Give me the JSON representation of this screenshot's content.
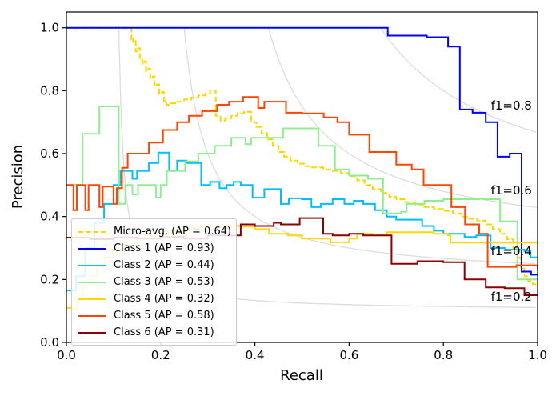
{
  "chart_data": {
    "type": "line",
    "title": "",
    "xlabel": "Recall",
    "ylabel": "Precision",
    "xlim": [
      0,
      1.0
    ],
    "ylim": [
      0,
      1.05
    ],
    "x_ticks": [
      "0.0",
      "0.2",
      "0.4",
      "0.6",
      "0.8",
      "1.0"
    ],
    "y_ticks": [
      "0.0",
      "0.2",
      "0.4",
      "0.6",
      "0.8",
      "1.0"
    ],
    "grid": false,
    "legend_position": "lower-left",
    "iso_f1": {
      "values": [
        0.2,
        0.4,
        0.6,
        0.8
      ],
      "labels": [
        "f1=0.2",
        "f1=0.4",
        "f1=0.6",
        "f1=0.8"
      ],
      "color": "#dcdcdc",
      "label_x": 0.9
    },
    "series": [
      {
        "name": "micro-avg",
        "label": "Micro-avg. (AP = 0.64)",
        "color": "#FFD700",
        "dash": "7 3",
        "points": [
          [
            0,
            1.0
          ],
          [
            0.134,
            1.0
          ],
          [
            0.138,
            0.955
          ],
          [
            0.142,
            0.965
          ],
          [
            0.147,
            0.925
          ],
          [
            0.152,
            0.935
          ],
          [
            0.156,
            0.9
          ],
          [
            0.161,
            0.885
          ],
          [
            0.165,
            0.893
          ],
          [
            0.169,
            0.862
          ],
          [
            0.174,
            0.87
          ],
          [
            0.178,
            0.838
          ],
          [
            0.183,
            0.845
          ],
          [
            0.187,
            0.815
          ],
          [
            0.192,
            0.82
          ],
          [
            0.197,
            0.79
          ],
          [
            0.202,
            0.795
          ],
          [
            0.207,
            0.768
          ],
          [
            0.212,
            0.755
          ],
          [
            0.22,
            0.76
          ],
          [
            0.235,
            0.765
          ],
          [
            0.25,
            0.772
          ],
          [
            0.265,
            0.778
          ],
          [
            0.28,
            0.785
          ],
          [
            0.295,
            0.79
          ],
          [
            0.305,
            0.8
          ],
          [
            0.317,
            0.72
          ],
          [
            0.327,
            0.705
          ],
          [
            0.337,
            0.712
          ],
          [
            0.35,
            0.72
          ],
          [
            0.363,
            0.728
          ],
          [
            0.377,
            0.733
          ],
          [
            0.392,
            0.7
          ],
          [
            0.403,
            0.685
          ],
          [
            0.414,
            0.665
          ],
          [
            0.426,
            0.645
          ],
          [
            0.438,
            0.625
          ],
          [
            0.45,
            0.605
          ],
          [
            0.462,
            0.59
          ],
          [
            0.475,
            0.578
          ],
          [
            0.49,
            0.568
          ],
          [
            0.505,
            0.56
          ],
          [
            0.52,
            0.556
          ],
          [
            0.545,
            0.55
          ],
          [
            0.562,
            0.545
          ],
          [
            0.582,
            0.538
          ],
          [
            0.6,
            0.528
          ],
          [
            0.617,
            0.515
          ],
          [
            0.633,
            0.5
          ],
          [
            0.65,
            0.487
          ],
          [
            0.667,
            0.475
          ],
          [
            0.685,
            0.463
          ],
          [
            0.7,
            0.455
          ],
          [
            0.72,
            0.446
          ],
          [
            0.74,
            0.438
          ],
          [
            0.76,
            0.43
          ],
          [
            0.78,
            0.424
          ],
          [
            0.8,
            0.418
          ],
          [
            0.82,
            0.41
          ],
          [
            0.838,
            0.4
          ],
          [
            0.855,
            0.393
          ],
          [
            0.872,
            0.387
          ],
          [
            0.89,
            0.375
          ],
          [
            0.905,
            0.36
          ],
          [
            0.92,
            0.345
          ],
          [
            0.935,
            0.328
          ],
          [
            0.948,
            0.3
          ],
          [
            0.957,
            0.27
          ],
          [
            0.964,
            0.235
          ],
          [
            0.972,
            0.21
          ],
          [
            0.98,
            0.195
          ],
          [
            0.99,
            0.185
          ],
          [
            1.0,
            0.18
          ]
        ]
      },
      {
        "name": "class-1",
        "label": "Class 1 (AP = 0.93)",
        "color": "#0000FF",
        "dash": null,
        "points": [
          [
            0,
            1.0
          ],
          [
            0.678,
            1.0
          ],
          [
            0.682,
            0.975
          ],
          [
            0.762,
            0.975
          ],
          [
            0.765,
            0.97
          ],
          [
            0.805,
            0.97
          ],
          [
            0.81,
            0.94
          ],
          [
            0.832,
            0.94
          ],
          [
            0.835,
            0.74
          ],
          [
            0.858,
            0.74
          ],
          [
            0.862,
            0.73
          ],
          [
            0.886,
            0.73
          ],
          [
            0.89,
            0.7
          ],
          [
            0.912,
            0.7
          ],
          [
            0.915,
            0.59
          ],
          [
            0.938,
            0.59
          ],
          [
            0.941,
            0.6
          ],
          [
            0.963,
            0.6
          ],
          [
            0.966,
            0.225
          ],
          [
            0.983,
            0.225
          ],
          [
            0.986,
            0.215
          ],
          [
            1.0,
            0.215
          ]
        ]
      },
      {
        "name": "class-2",
        "label": "Class 2 (AP = 0.44)",
        "color": "#00BFFF",
        "dash": null,
        "points": [
          [
            0,
            0.165
          ],
          [
            0.02,
            0.21
          ],
          [
            0.04,
            0.3
          ],
          [
            0.06,
            0.38
          ],
          [
            0.08,
            0.44
          ],
          [
            0.1,
            0.5
          ],
          [
            0.115,
            0.545
          ],
          [
            0.14,
            0.52
          ],
          [
            0.15,
            0.545
          ],
          [
            0.175,
            0.57
          ],
          [
            0.195,
            0.603
          ],
          [
            0.218,
            0.545
          ],
          [
            0.235,
            0.578
          ],
          [
            0.255,
            0.57
          ],
          [
            0.286,
            0.5
          ],
          [
            0.305,
            0.51
          ],
          [
            0.325,
            0.49
          ],
          [
            0.34,
            0.5
          ],
          [
            0.355,
            0.51
          ],
          [
            0.37,
            0.5
          ],
          [
            0.395,
            0.46
          ],
          [
            0.42,
            0.487
          ],
          [
            0.455,
            0.44
          ],
          [
            0.472,
            0.458
          ],
          [
            0.5,
            0.455
          ],
          [
            0.52,
            0.43
          ],
          [
            0.54,
            0.44
          ],
          [
            0.565,
            0.455
          ],
          [
            0.59,
            0.44
          ],
          [
            0.61,
            0.45
          ],
          [
            0.63,
            0.44
          ],
          [
            0.655,
            0.42
          ],
          [
            0.68,
            0.4
          ],
          [
            0.7,
            0.39
          ],
          [
            0.73,
            0.39
          ],
          [
            0.755,
            0.37
          ],
          [
            0.78,
            0.355
          ],
          [
            0.8,
            0.345
          ],
          [
            0.83,
            0.345
          ],
          [
            0.845,
            0.335
          ],
          [
            0.87,
            0.34
          ],
          [
            0.9,
            0.3
          ],
          [
            0.93,
            0.295
          ],
          [
            0.972,
            0.29
          ],
          [
            0.985,
            0.27
          ],
          [
            1.0,
            0.27
          ]
        ]
      },
      {
        "name": "class-3",
        "label": "Class 3 (AP = 0.53)",
        "color": "#90EE90",
        "dash": null,
        "points": [
          [
            0,
            0.5
          ],
          [
            0.034,
            0.663
          ],
          [
            0.07,
            0.75
          ],
          [
            0.108,
            0.75
          ],
          [
            0.111,
            0.44
          ],
          [
            0.125,
            0.5
          ],
          [
            0.14,
            0.47
          ],
          [
            0.152,
            0.5
          ],
          [
            0.175,
            0.5
          ],
          [
            0.19,
            0.46
          ],
          [
            0.2,
            0.5
          ],
          [
            0.213,
            0.545
          ],
          [
            0.24,
            0.545
          ],
          [
            0.252,
            0.575
          ],
          [
            0.28,
            0.6
          ],
          [
            0.315,
            0.625
          ],
          [
            0.35,
            0.65
          ],
          [
            0.38,
            0.63
          ],
          [
            0.392,
            0.65
          ],
          [
            0.425,
            0.65
          ],
          [
            0.46,
            0.68
          ],
          [
            0.53,
            0.68
          ],
          [
            0.535,
            0.625
          ],
          [
            0.565,
            0.625
          ],
          [
            0.57,
            0.55
          ],
          [
            0.6,
            0.53
          ],
          [
            0.64,
            0.52
          ],
          [
            0.672,
            0.41
          ],
          [
            0.71,
            0.415
          ],
          [
            0.722,
            0.44
          ],
          [
            0.76,
            0.45
          ],
          [
            0.8,
            0.455
          ],
          [
            0.875,
            0.457
          ],
          [
            0.882,
            0.455
          ],
          [
            0.92,
            0.385
          ],
          [
            0.954,
            0.385
          ],
          [
            0.957,
            0.2
          ],
          [
            1.0,
            0.195
          ]
        ]
      },
      {
        "name": "class-4",
        "label": "Class 4 (AP = 0.32)",
        "color": "#FFD700",
        "dash": null,
        "points": [
          [
            0,
            0.11
          ],
          [
            0.012,
            0.105
          ],
          [
            0.022,
            0.14
          ],
          [
            0.035,
            0.18
          ],
          [
            0.05,
            0.21
          ],
          [
            0.065,
            0.24
          ],
          [
            0.08,
            0.27
          ],
          [
            0.1,
            0.29
          ],
          [
            0.12,
            0.31
          ],
          [
            0.15,
            0.33
          ],
          [
            0.18,
            0.345
          ],
          [
            0.22,
            0.355
          ],
          [
            0.26,
            0.365
          ],
          [
            0.3,
            0.368
          ],
          [
            0.33,
            0.37
          ],
          [
            0.37,
            0.368
          ],
          [
            0.4,
            0.36
          ],
          [
            0.43,
            0.345
          ],
          [
            0.47,
            0.34
          ],
          [
            0.5,
            0.33
          ],
          [
            0.56,
            0.318
          ],
          [
            0.6,
            0.33
          ],
          [
            0.617,
            0.345
          ],
          [
            0.65,
            0.34
          ],
          [
            0.68,
            0.35
          ],
          [
            0.74,
            0.35
          ],
          [
            0.78,
            0.345
          ],
          [
            0.81,
            0.34
          ],
          [
            0.815,
            0.317
          ],
          [
            1.0,
            0.317
          ]
        ]
      },
      {
        "name": "class-5",
        "label": "Class 5 (AP = 0.58)",
        "color": "#FF4500",
        "dash": null,
        "points": [
          [
            0,
            0.5
          ],
          [
            0.015,
            0.42
          ],
          [
            0.022,
            0.5
          ],
          [
            0.04,
            0.42
          ],
          [
            0.047,
            0.5
          ],
          [
            0.07,
            0.43
          ],
          [
            0.077,
            0.495
          ],
          [
            0.1,
            0.44
          ],
          [
            0.107,
            0.49
          ],
          [
            0.118,
            0.555
          ],
          [
            0.13,
            0.6
          ],
          [
            0.155,
            0.6
          ],
          [
            0.175,
            0.635
          ],
          [
            0.205,
            0.675
          ],
          [
            0.235,
            0.7
          ],
          [
            0.26,
            0.72
          ],
          [
            0.288,
            0.735
          ],
          [
            0.32,
            0.755
          ],
          [
            0.345,
            0.765
          ],
          [
            0.375,
            0.78
          ],
          [
            0.407,
            0.745
          ],
          [
            0.42,
            0.765
          ],
          [
            0.466,
            0.73
          ],
          [
            0.5,
            0.728
          ],
          [
            0.546,
            0.715
          ],
          [
            0.575,
            0.7
          ],
          [
            0.6,
            0.66
          ],
          [
            0.643,
            0.605
          ],
          [
            0.7,
            0.565
          ],
          [
            0.733,
            0.55
          ],
          [
            0.758,
            0.5
          ],
          [
            0.817,
            0.43
          ],
          [
            0.846,
            0.375
          ],
          [
            0.876,
            0.345
          ],
          [
            0.894,
            0.24
          ],
          [
            0.955,
            0.245
          ],
          [
            1.0,
            0.235
          ]
        ]
      },
      {
        "name": "class-6",
        "label": "Class 6 (AP = 0.31)",
        "color": "#8B0000",
        "dash": null,
        "points": [
          [
            0,
            0.333
          ],
          [
            0.05,
            0.328
          ],
          [
            0.1,
            0.333
          ],
          [
            0.15,
            0.33
          ],
          [
            0.2,
            0.335
          ],
          [
            0.25,
            0.33
          ],
          [
            0.3,
            0.34
          ],
          [
            0.37,
            0.375
          ],
          [
            0.4,
            0.37
          ],
          [
            0.44,
            0.38
          ],
          [
            0.455,
            0.375
          ],
          [
            0.495,
            0.395
          ],
          [
            0.545,
            0.345
          ],
          [
            0.565,
            0.34
          ],
          [
            0.6,
            0.345
          ],
          [
            0.63,
            0.34
          ],
          [
            0.69,
            0.25
          ],
          [
            0.745,
            0.258
          ],
          [
            0.8,
            0.255
          ],
          [
            0.845,
            0.2
          ],
          [
            0.89,
            0.175
          ],
          [
            0.93,
            0.172
          ],
          [
            0.972,
            0.15
          ],
          [
            1.0,
            0.148
          ]
        ]
      }
    ]
  }
}
